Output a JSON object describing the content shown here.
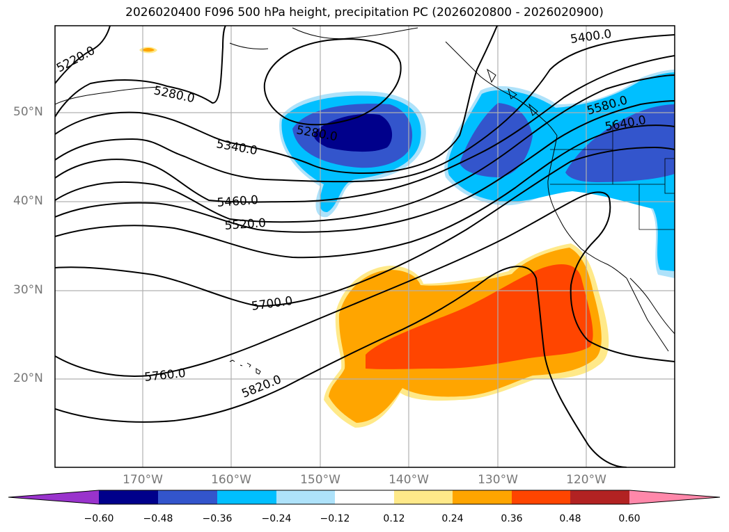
{
  "title": "2026020400 F096 500 hPa height, precipitation PC (2026020800 - 2026020900)",
  "lat_labels": [
    "50°N",
    "40°N",
    "30°N",
    "20°N"
  ],
  "lon_labels": [
    "170°W",
    "160°W",
    "150°W",
    "140°W",
    "130°W",
    "120°W"
  ],
  "contour_labels": [
    "5220.0",
    "5280.0",
    "5280.0",
    "5340.0",
    "5400.0",
    "5460.0",
    "5520.0",
    "5580.0",
    "5640.0",
    "5700.0",
    "5760.0",
    "5820.0"
  ],
  "colorbar": {
    "ticks": [
      "−0.60",
      "−0.48",
      "−0.36",
      "−0.24",
      "−0.12",
      "0.12",
      "0.24",
      "0.36",
      "0.48",
      "0.60"
    ],
    "colors": [
      "#9933cc",
      "#00008b",
      "#3355cc",
      "#00bfff",
      "#aee2fa",
      "#ffffff",
      "#ffe989",
      "#ffa500",
      "#ff4500",
      "#b22222",
      "#ff88aa"
    ]
  },
  "shading_colors": {
    "neg_light": "#aee2fa",
    "neg_mid": "#00bfff",
    "neg_strong": "#3355cc",
    "neg_max": "#00008b",
    "pos_light": "#ffe989",
    "pos_mid": "#ffa500",
    "pos_strong": "#ff4500"
  }
}
